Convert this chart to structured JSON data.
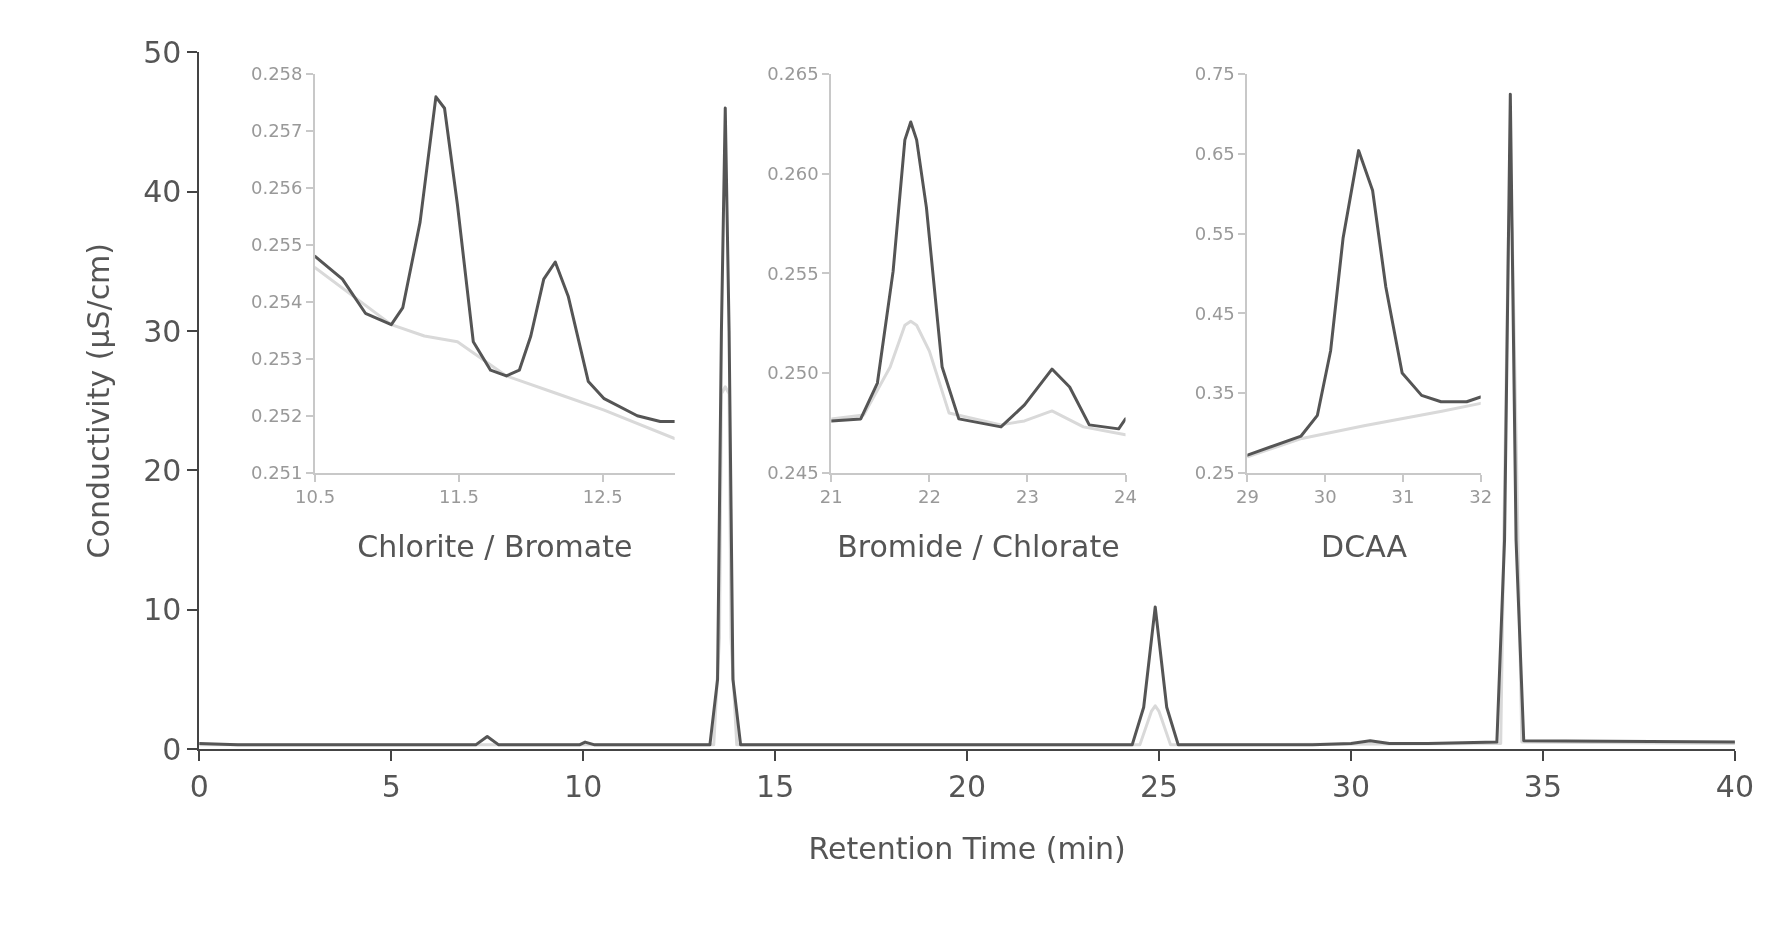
{
  "chart_data": [
    {
      "type": "line",
      "xlabel": "Retention Time (min)",
      "ylabel": "Conductivity (µS/cm)",
      "xlim": [
        0,
        40
      ],
      "ylim": [
        0,
        50
      ],
      "xticks": [
        0,
        5,
        10,
        15,
        20,
        25,
        30,
        35,
        40
      ],
      "yticks": [
        0,
        10,
        20,
        30,
        40,
        50
      ],
      "grid": false,
      "series": [
        {
          "color": "#d9d9d9",
          "x": [
            0,
            13.4,
            13.55,
            13.6,
            13.7,
            13.8,
            13.85,
            14.0,
            24.5,
            24.8,
            24.9,
            25.0,
            25.3,
            33.9,
            34.1,
            34.15,
            34.2,
            34.45,
            40
          ],
          "values": [
            0.3,
            0.3,
            8,
            25.5,
            26,
            25.5,
            8,
            0.3,
            0.3,
            2.7,
            3.1,
            2.7,
            0.3,
            0.4,
            37,
            40,
            37,
            0.5,
            0.4
          ]
        },
        {
          "color": "#555555",
          "x": [
            0,
            1,
            7.2,
            7.5,
            7.8,
            9.9,
            10.05,
            10.3,
            13.3,
            13.5,
            13.6,
            13.7,
            13.8,
            13.9,
            14.1,
            24.3,
            24.6,
            24.9,
            25.2,
            25.5,
            29,
            30,
            30.5,
            31,
            32,
            33.8,
            34.0,
            34.15,
            34.3,
            34.5,
            40
          ],
          "values": [
            0.4,
            0.3,
            0.3,
            0.9,
            0.3,
            0.3,
            0.5,
            0.3,
            0.3,
            5,
            30,
            46,
            30,
            5,
            0.3,
            0.3,
            3,
            10.2,
            3,
            0.3,
            0.3,
            0.4,
            0.6,
            0.4,
            0.4,
            0.5,
            15,
            47,
            15,
            0.6,
            0.5
          ]
        }
      ]
    },
    {
      "type": "line",
      "xlabel": "Chlorite / Bromate",
      "xlim": [
        10.5,
        13.0
      ],
      "ylim": [
        0.251,
        0.258
      ],
      "xticks": [
        {
          "value": 10.5,
          "label": "10.5"
        },
        {
          "value": 11.5,
          "label": "11.5"
        },
        {
          "value": 12.5,
          "label": "12.5"
        }
      ],
      "yticks": [
        0.251,
        0.252,
        0.253,
        0.254,
        0.255,
        0.256,
        0.257,
        0.258
      ],
      "grid": false,
      "series": [
        {
          "color": "#d9d9d9",
          "x": [
            10.5,
            11.03,
            11.26,
            11.49,
            11.83,
            12.17,
            12.51,
            13.0
          ],
          "values": [
            0.2546,
            0.2536,
            0.2534,
            0.2533,
            0.2527,
            0.2524,
            0.2521,
            0.2516
          ]
        },
        {
          "color": "#555555",
          "x": [
            10.5,
            10.69,
            10.85,
            11.03,
            11.11,
            11.23,
            11.34,
            11.4,
            11.49,
            11.6,
            11.72,
            11.83,
            11.92,
            12.0,
            12.09,
            12.17,
            12.26,
            12.4,
            12.51,
            12.74,
            12.9,
            13.0
          ],
          "values": [
            0.2548,
            0.2544,
            0.2538,
            0.2536,
            0.2539,
            0.2554,
            0.2576,
            0.2574,
            0.2557,
            0.2533,
            0.2528,
            0.2527,
            0.2528,
            0.2534,
            0.2544,
            0.2547,
            0.2541,
            0.2526,
            0.2523,
            0.252,
            0.2519,
            0.2519
          ]
        }
      ]
    },
    {
      "type": "line",
      "xlabel": "Bromide / Chlorate",
      "xlim": [
        21,
        24
      ],
      "ylim": [
        0.245,
        0.265
      ],
      "xticks": [
        21,
        22,
        23,
        24
      ],
      "yticks": [
        {
          "value": 0.245,
          "label": "0.245"
        },
        {
          "value": 0.25,
          "label": "0.250"
        },
        {
          "value": 0.255,
          "label": "0.255"
        },
        {
          "value": 0.26,
          "label": "0.260"
        },
        {
          "value": 0.265,
          "label": "0.265"
        }
      ],
      "grid": false,
      "series": [
        {
          "color": "#d9d9d9",
          "x": [
            21,
            21.33,
            21.6,
            21.75,
            21.81,
            21.87,
            22.0,
            22.2,
            22.73,
            22.97,
            23.25,
            23.57,
            24
          ],
          "values": [
            0.2477,
            0.2479,
            0.2503,
            0.2524,
            0.2526,
            0.2524,
            0.2511,
            0.248,
            0.2474,
            0.2476,
            0.2481,
            0.2473,
            0.2469
          ]
        },
        {
          "color": "#555555",
          "x": [
            21,
            21.3,
            21.47,
            21.63,
            21.75,
            21.81,
            21.87,
            21.97,
            22.13,
            22.3,
            22.73,
            22.97,
            23.25,
            23.43,
            23.63,
            23.93,
            24
          ],
          "values": [
            0.2476,
            0.2477,
            0.2495,
            0.2551,
            0.2617,
            0.2626,
            0.2617,
            0.2583,
            0.2503,
            0.2477,
            0.2473,
            0.2484,
            0.2502,
            0.2493,
            0.2474,
            0.2472,
            0.2477
          ]
        }
      ]
    },
    {
      "type": "line",
      "xlabel": "DCAA",
      "xlim": [
        29,
        32
      ],
      "ylim": [
        0.25,
        0.75
      ],
      "xticks": [
        29,
        30,
        31,
        32
      ],
      "yticks": [
        0.25,
        0.35,
        0.45,
        0.55,
        0.65,
        0.75
      ],
      "grid": false,
      "series": [
        {
          "color": "#d9d9d9",
          "x": [
            29,
            29.7,
            30.5,
            31.5,
            32
          ],
          "values": [
            0.27,
            0.293,
            0.309,
            0.327,
            0.337
          ]
        },
        {
          "color": "#555555",
          "x": [
            29,
            29.69,
            29.9,
            30.07,
            30.23,
            30.43,
            30.61,
            30.78,
            30.99,
            31.24,
            31.49,
            31.82,
            32
          ],
          "values": [
            0.272,
            0.296,
            0.322,
            0.403,
            0.544,
            0.654,
            0.604,
            0.483,
            0.375,
            0.347,
            0.339,
            0.339,
            0.345
          ]
        }
      ]
    }
  ]
}
